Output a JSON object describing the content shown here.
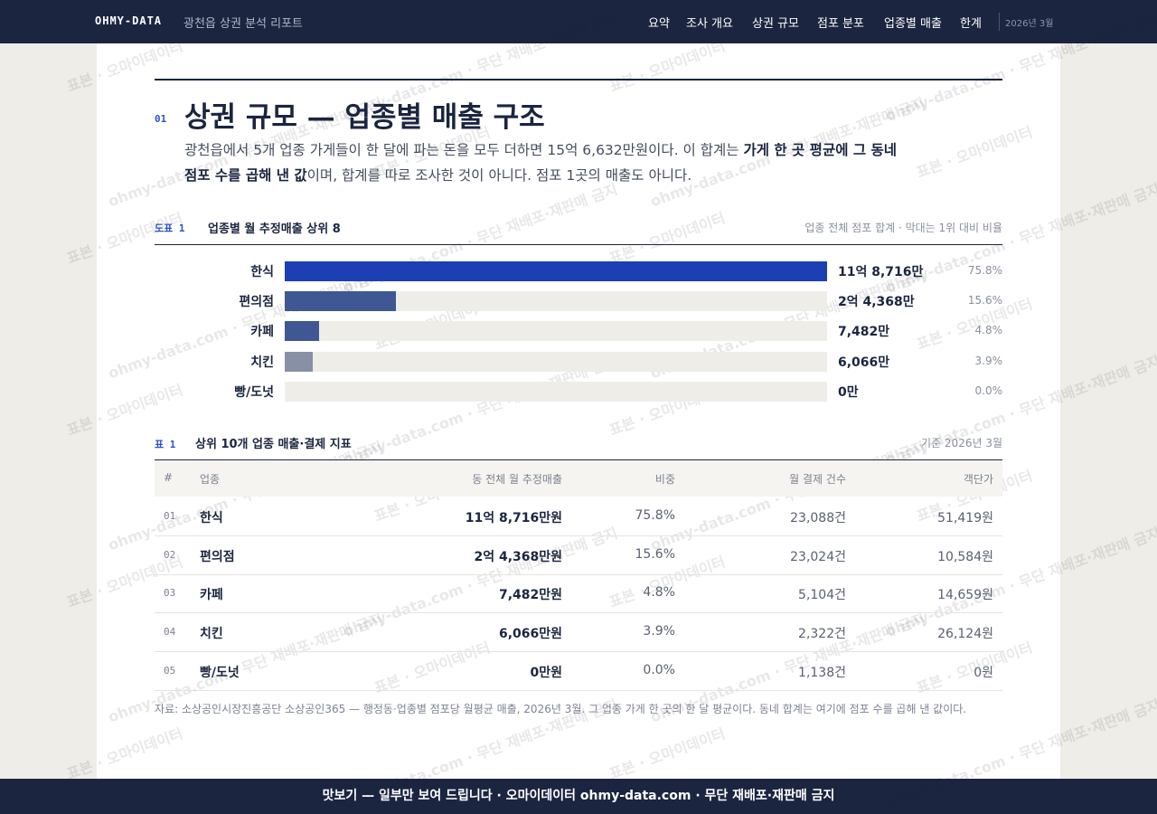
{
  "nav": {
    "brand": "OHMY-DATA",
    "subtitle": "광천읍 상권 분석 리포트",
    "links": [
      "요약",
      "조사 개요",
      "상권 규모",
      "점포 분포",
      "업종별 매출",
      "한계"
    ],
    "date": "2026년 3월"
  },
  "section": {
    "number": "01",
    "title": "상권 규모 — 업종별 매출 구조",
    "intro": [
      {
        "text": "광천읍에서 5개 업종 가게들이 한 달에 파는 돈을 모두 더하면 15억 6,632만원이다. 이 합계는 ",
        "bold": false
      },
      {
        "text": "가게 한 곳 평균에 그 동네 점포 수를 곱해 낸 값",
        "bold": true
      },
      {
        "text": "이며, 합계를 따로 조사한 것이 아니다. 점포 1곳의 매출도 아니다.",
        "bold": false
      }
    ]
  },
  "chart_data": {
    "type": "bar",
    "orientation": "horizontal",
    "label": "도표 1",
    "title": "업종별 월 추정매출 상위 8",
    "note": "업종 전체 점포 합계 · 막대는 1위 대비 비율",
    "categories": [
      "한식",
      "편의점",
      "카페",
      "치킨",
      "빵/도넛"
    ],
    "xlim": [
      0,
      118716
    ],
    "track_color": "#eeede8",
    "series": [
      {
        "values": [
          118716,
          24368,
          7482,
          6066,
          0
        ],
        "value_labels": [
          "11억 8,716만",
          "2억 4,368만",
          "7,482만",
          "6,066만",
          "0만"
        ],
        "colors": [
          "#1c40b4",
          "#3f5793",
          "#3f5793",
          "#8890a6",
          "#8890a6"
        ]
      },
      {
        "values": [
          75.8,
          15.6,
          4.8,
          3.9,
          0.0
        ],
        "value_labels": [
          "75.8%",
          "15.6%",
          "4.8%",
          "3.9%",
          "0.0%"
        ]
      }
    ]
  },
  "table": {
    "label": "표 1",
    "title": "상위 10개 업종 매출·결제 지표",
    "note": "기준 2026년 3월",
    "columns": [
      "#",
      "업종",
      "동 전체 월 추정매출",
      "비중",
      "월 결제 건수",
      "객단가"
    ],
    "rows": [
      [
        "01",
        "한식",
        "11억 8,716만원",
        "75.8%",
        "23,088건",
        "51,419원"
      ],
      [
        "02",
        "편의점",
        "2억 4,368만원",
        "15.6%",
        "23,024건",
        "10,584원"
      ],
      [
        "03",
        "카페",
        "7,482만원",
        "4.8%",
        "5,104건",
        "14,659원"
      ],
      [
        "04",
        "치킨",
        "6,066만원",
        "3.9%",
        "2,322건",
        "26,124원"
      ],
      [
        "05",
        "빵/도넛",
        "0만원",
        "0.0%",
        "1,138건",
        "0원"
      ]
    ],
    "source": "자료: 소상공인시장진흥공단 소상공인365 — 행정동·업종별 점포당 월평균 매출, 2026년 3월. 그 업종 가게 한 곳의 한 달 평균이다. 동네 합계는 여기에 점포 수를 곱해 낸 값이다."
  },
  "footer": "맛보기 — 일부만 보여 드립니다 · 오마이데이터 ohmy-data.com · 무단 재배포·재판매 금지",
  "watermarks": [
    "표본 · 오마이데이터",
    "ohmy-data.com · 무단 재배포·재판매 금지"
  ]
}
